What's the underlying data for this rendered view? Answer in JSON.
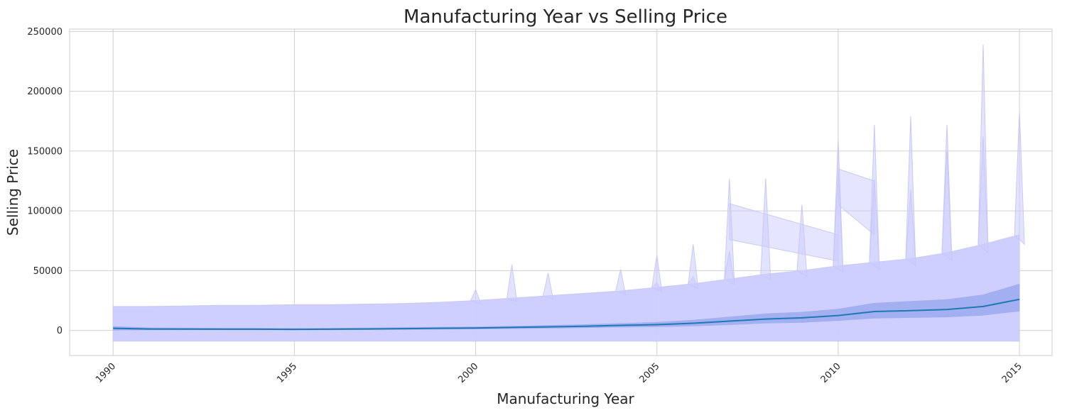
{
  "chart_data": {
    "type": "line",
    "title": "Manufacturing Year vs Selling Price",
    "xlabel": "Manufacturing Year",
    "ylabel": "Selling Price",
    "xlim": [
      1988.8,
      2015.9
    ],
    "ylim": [
      -21000,
      252000
    ],
    "xticks": [
      1990,
      1995,
      2000,
      2005,
      2010,
      2015
    ],
    "yticks": [
      0,
      50000,
      100000,
      150000,
      200000,
      250000
    ],
    "grid": true,
    "colors": {
      "mean_line": "#1f77b4",
      "mean_ci": "#4c72d8",
      "spread_fill": "#ccccff",
      "spread_line": "#c8c8f8"
    },
    "series": [
      {
        "x": [
          1990,
          1991,
          1992,
          1993,
          1994,
          1995,
          1996,
          1997,
          1998,
          1999,
          2000,
          2001,
          2002,
          2003,
          2004,
          2005,
          2006,
          2007,
          2008,
          2009,
          2010,
          2011,
          2012,
          2013,
          2014,
          2015
        ],
        "y": [
          1800,
          1200,
          1100,
          1000,
          1000,
          900,
          1000,
          1200,
          1500,
          1800,
          2000,
          2500,
          3000,
          3500,
          4200,
          4800,
          6000,
          7800,
          9500,
          10500,
          12500,
          15800,
          16500,
          17500,
          20000,
          26000
        ],
        "ci_low": [
          0,
          200,
          300,
          300,
          300,
          200,
          300,
          400,
          600,
          800,
          1000,
          1300,
          1600,
          2000,
          2500,
          2800,
          3500,
          4500,
          5800,
          6500,
          8000,
          10000,
          10500,
          11000,
          12500,
          16000
        ],
        "ci_high": [
          3500,
          2400,
          2200,
          2000,
          2000,
          1800,
          2000,
          2300,
          2600,
          3000,
          3200,
          3700,
          4400,
          5100,
          6000,
          7000,
          8800,
          11500,
          14200,
          15500,
          18000,
          23000,
          24500,
          26000,
          30000,
          39000
        ]
      },
      {
        "x": [
          1990,
          1991,
          1992,
          1993,
          1994,
          1995,
          1996,
          1997,
          1998,
          1999,
          2000,
          2001,
          2002,
          2003,
          2004,
          2005,
          2006,
          2007,
          2008,
          2009,
          2010,
          2011,
          2012,
          2013,
          2014,
          2015
        ],
        "y_low": [
          -9000,
          -9000,
          -9000,
          -9000,
          -9000,
          -9000,
          -9000,
          -9000,
          -9000,
          -9000,
          -9000,
          -9000,
          -9000,
          -9000,
          -9000,
          -9000,
          -9000,
          -9000,
          -9000,
          -9000,
          -9000,
          -9000,
          -9000,
          -9000,
          -9000,
          -9000
        ],
        "y_high": [
          20000,
          20000,
          20500,
          21000,
          21000,
          21500,
          21500,
          22000,
          22500,
          23500,
          25000,
          27000,
          29000,
          31000,
          33000,
          36000,
          39000,
          43000,
          47000,
          50000,
          54000,
          57000,
          60000,
          65000,
          72000,
          80000
        ]
      },
      {
        "x": [
          2000,
          2001,
          2001,
          2002,
          2004,
          2005,
          2005,
          2006,
          2006,
          2007,
          2007,
          2008,
          2009,
          2010,
          2010,
          2011,
          2011,
          2012,
          2012,
          2013,
          2013,
          2014,
          2014,
          2015
        ],
        "y": [
          34000,
          25000,
          55000,
          48000,
          51000,
          40000,
          63000,
          45000,
          72000,
          127000,
          66000,
          127000,
          105000,
          160000,
          135000,
          172000,
          126000,
          179000,
          118000,
          172000,
          150000,
          239000,
          162000,
          183000
        ]
      },
      {
        "x": [
          2007,
          2010
        ],
        "y_low": [
          76000,
          58000
        ],
        "y_high": [
          106000,
          80000
        ]
      },
      {
        "x": [
          2010,
          2011
        ],
        "y_low": [
          105000,
          80000
        ],
        "y_high": [
          135000,
          125000
        ]
      }
    ]
  }
}
